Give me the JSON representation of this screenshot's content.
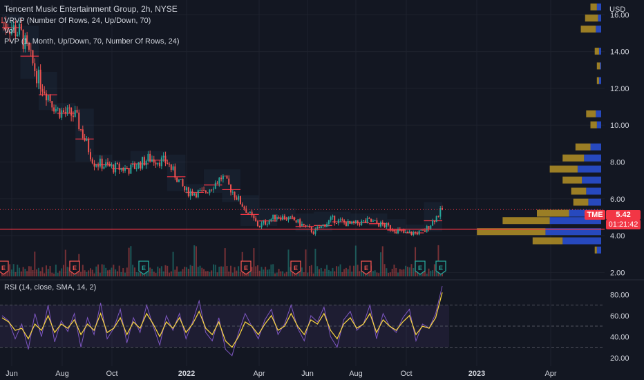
{
  "header": {
    "title": "Tencent Music Entertainment Group, 2h, NYSE",
    "indicators": [
      "VRVP (Number Of Rows, 24, Up/Down, 70)",
      "Vol",
      "PVP (1, Month, Up/Down, 70, Number Of Rows, 24)"
    ],
    "rsi_label": "RSI (14, close, SMA, 14, 2)"
  },
  "price_badge": {
    "symbol": "TME",
    "price": "5.42",
    "countdown": "01:21:42"
  },
  "colors": {
    "background": "#131722",
    "grid": "#1e222d",
    "up": "#26a69a",
    "down": "#ef5350",
    "vp_up": "#2a4fcf",
    "vp_down": "#c9a227",
    "rsi": "#7e57c2",
    "rsi_ma": "#f5d142",
    "poc": "#f23645"
  },
  "chart_data": [
    {
      "type": "candlestick",
      "title": "Tencent Music Entertainment Group, 2h, NYSE",
      "currency": "USD",
      "y_ticks": [
        "2.00",
        "4.00",
        "6.00",
        "8.00",
        "10.00",
        "12.00",
        "14.00",
        "16.00"
      ],
      "ylim": [
        1.6,
        16.8
      ],
      "x_ticks": [
        "Jun",
        "Aug",
        "Oct",
        "2022",
        "Apr",
        "Jun",
        "Aug",
        "Oct",
        "2023",
        "Apr"
      ],
      "price_path": [
        [
          "Jun",
          15.6
        ],
        [
          "Jul",
          15.0
        ],
        [
          "mid-Jul",
          12.5
        ],
        [
          "late-Jul",
          10.8
        ],
        [
          "Aug",
          10.5
        ],
        [
          "mid-Aug",
          8.0
        ],
        [
          "Sep",
          7.7
        ],
        [
          "Oct",
          7.6
        ],
        [
          "Nov",
          8.2
        ],
        [
          "Dec",
          8.0
        ],
        [
          "mid-Dec",
          6.4
        ],
        [
          "2022",
          6.3
        ],
        [
          "Jan",
          7.2
        ],
        [
          "Feb",
          5.8
        ],
        [
          "Mar",
          4.5
        ],
        [
          "mid-Mar",
          5.1
        ],
        [
          "Apr",
          4.8
        ],
        [
          "May",
          4.2
        ],
        [
          "Jun",
          4.9
        ],
        [
          "Jul",
          4.6
        ],
        [
          "Aug",
          4.8
        ],
        [
          "Sep",
          4.5
        ],
        [
          "Oct",
          4.1
        ],
        [
          "Nov",
          4.2
        ],
        [
          "late-Nov",
          5.42
        ]
      ],
      "poc_line": 4.35,
      "current_price": 5.42,
      "earnings_markers": [
        "Jun",
        "Aug",
        "Nov",
        "2022",
        "Mar",
        "May",
        "Aug",
        "Nov"
      ],
      "volume_profile": [
        {
          "price": 16.4,
          "up": 4,
          "down": 6
        },
        {
          "price": 15.8,
          "up": 3,
          "down": 12
        },
        {
          "price": 15.2,
          "up": 5,
          "down": 14
        },
        {
          "price": 14.0,
          "up": 2,
          "down": 4
        },
        {
          "price": 13.2,
          "up": 1,
          "down": 3
        },
        {
          "price": 12.4,
          "up": 2,
          "down": 2
        },
        {
          "price": 10.6,
          "up": 5,
          "down": 9
        },
        {
          "price": 10.0,
          "up": 4,
          "down": 6
        },
        {
          "price": 8.8,
          "up": 10,
          "down": 14
        },
        {
          "price": 8.2,
          "up": 16,
          "down": 20
        },
        {
          "price": 7.6,
          "up": 22,
          "down": 26
        },
        {
          "price": 7.0,
          "up": 18,
          "down": 18
        },
        {
          "price": 6.4,
          "up": 14,
          "down": 14
        },
        {
          "price": 5.8,
          "up": 12,
          "down": 14
        },
        {
          "price": 5.2,
          "up": 30,
          "down": 30
        },
        {
          "price": 4.8,
          "up": 48,
          "down": 44
        },
        {
          "price": 4.2,
          "up": 52,
          "down": 64
        },
        {
          "price": 3.7,
          "up": 36,
          "down": 28
        },
        {
          "price": 3.2,
          "up": 4,
          "down": 2
        }
      ]
    },
    {
      "type": "line",
      "title": "RSI (14, close, SMA, 14, 2)",
      "y_ticks": [
        "20.00",
        "40.00",
        "60.00",
        "80.00"
      ],
      "ylim": [
        12,
        92
      ],
      "bands": [
        30,
        50,
        70
      ],
      "series": [
        {
          "values": [
            60,
            55,
            38,
            52,
            28,
            62,
            40,
            70,
            35,
            55,
            45,
            62,
            30,
            58,
            42,
            72,
            38,
            48,
            66,
            34,
            58,
            44,
            70,
            50,
            32,
            60,
            46,
            62,
            38,
            54,
            74,
            44,
            36,
            58,
            28,
            22,
            44,
            62,
            50,
            38,
            56,
            66,
            42,
            52,
            70,
            48,
            36,
            60,
            54,
            68,
            40,
            30,
            56,
            64,
            46,
            52,
            70,
            38,
            62,
            50,
            44,
            58,
            66,
            36,
            52,
            48,
            62,
            88
          ]
        },
        {
          "values": [
            58,
            54,
            46,
            48,
            38,
            52,
            46,
            60,
            44,
            52,
            48,
            56,
            42,
            52,
            46,
            62,
            44,
            48,
            58,
            42,
            54,
            48,
            62,
            52,
            40,
            54,
            48,
            58,
            44,
            52,
            64,
            48,
            42,
            54,
            36,
            30,
            40,
            54,
            50,
            42,
            52,
            60,
            46,
            50,
            62,
            50,
            42,
            56,
            52,
            62,
            46,
            38,
            52,
            58,
            48,
            52,
            62,
            44,
            56,
            50,
            46,
            54,
            60,
            42,
            50,
            48,
            58,
            82
          ]
        }
      ]
    }
  ]
}
